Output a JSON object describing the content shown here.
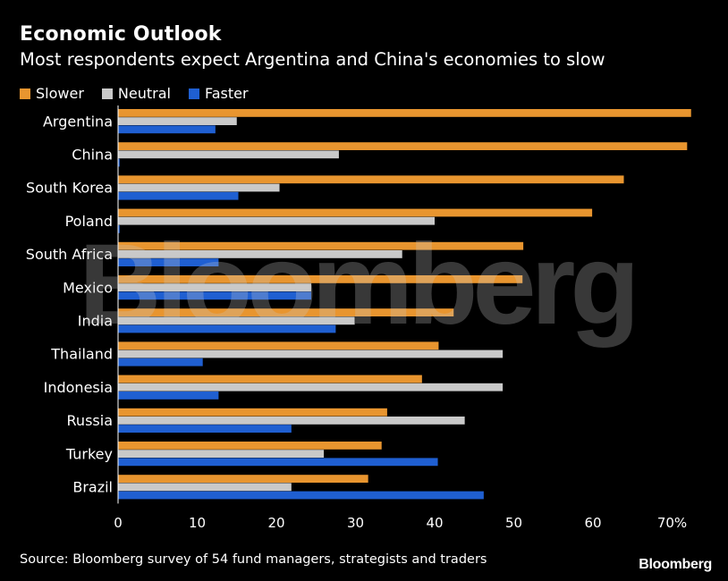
{
  "colors": {
    "slower": "#e8952f",
    "neutral": "#c9c9c9",
    "faster": "#1f5fd1",
    "background": "#000000"
  },
  "chart_data": {
    "type": "bar",
    "orientation": "horizontal",
    "title": "Economic Outlook",
    "subtitle": "Most respondents expect Argentina and China's economies to slow",
    "categories": [
      "Argentina",
      "China",
      "South Korea",
      "Poland",
      "South Africa",
      "Mexico",
      "India",
      "Thailand",
      "Indonesia",
      "Russia",
      "Turkey",
      "Brazil"
    ],
    "series": [
      {
        "name": "Slower",
        "color_key": "slower",
        "values": [
          72.4,
          71.9,
          63.9,
          59.9,
          51.2,
          51.1,
          42.4,
          40.5,
          38.4,
          34.0,
          33.3,
          31.6
        ]
      },
      {
        "name": "Neutral",
        "color_key": "neutral",
        "values": [
          15.0,
          27.9,
          20.4,
          40.0,
          35.9,
          24.4,
          29.9,
          48.6,
          48.6,
          43.8,
          26.0,
          21.9
        ]
      },
      {
        "name": "Faster",
        "color_key": "faster",
        "values": [
          12.3,
          0.2,
          15.2,
          0.2,
          12.7,
          24.4,
          27.5,
          10.7,
          12.7,
          21.9,
          40.4,
          46.2
        ]
      }
    ],
    "xlim": [
      0,
      75
    ],
    "xticks": [
      0,
      10,
      20,
      30,
      40,
      50,
      60,
      70
    ],
    "xtick_labels": [
      "0",
      "10",
      "20",
      "30",
      "40",
      "50",
      "60",
      "70%"
    ],
    "legend_position": "top-left",
    "source": "Source: Bloomberg survey of 54 fund managers, strategists and traders",
    "brand": "Bloomberg",
    "watermark": "Bloomberg"
  }
}
